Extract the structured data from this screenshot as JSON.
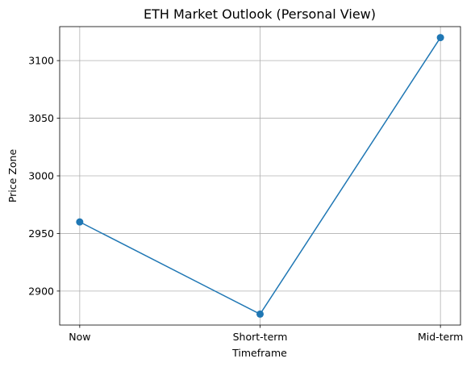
{
  "chart_data": {
    "type": "line",
    "title": "ETH Market Outlook (Personal View)",
    "xlabel": "Timeframe",
    "ylabel": "Price Zone",
    "categories": [
      "Now",
      "Short-term",
      "Mid-term"
    ],
    "series": [
      {
        "values": [
          2960,
          2880,
          3120
        ],
        "color": "#1f77b4",
        "marker": "circle"
      }
    ],
    "ylim": [
      2870.5,
      3129.5
    ],
    "yticks": [
      2900,
      2950,
      3000,
      3050,
      3100
    ],
    "grid": true,
    "legend": "none"
  }
}
